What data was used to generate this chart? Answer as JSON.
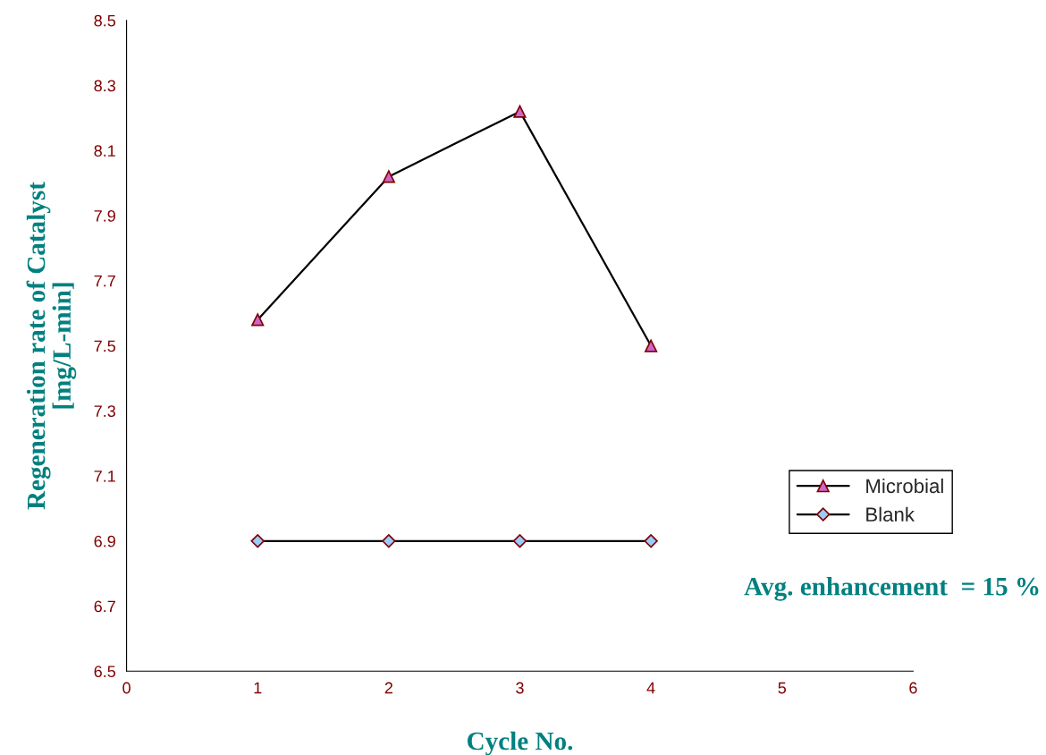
{
  "chart_data": {
    "type": "line",
    "xlabel": "Cycle No.",
    "ylabel": "Regeneration rate of Catalyst\n[mg/L-min]",
    "x": [
      1,
      2,
      3,
      4
    ],
    "series": [
      {
        "name": "Microbial",
        "color": "#000000",
        "marker": "triangle",
        "values": [
          7.58,
          8.02,
          8.22,
          7.5
        ]
      },
      {
        "name": "Blank",
        "color": "#000000",
        "marker": "diamond",
        "values": [
          6.9,
          6.9,
          6.9,
          6.9
        ]
      }
    ],
    "xlim": [
      0,
      6
    ],
    "xticks": [
      0,
      1,
      2,
      3,
      4,
      5,
      6
    ],
    "ylim": [
      6.5,
      8.5
    ],
    "yticks": [
      6.5,
      6.7,
      6.9,
      7.1,
      7.3,
      7.5,
      7.7,
      7.9,
      8.1,
      8.3,
      8.5
    ],
    "grid": false,
    "legend": "right",
    "line_style": "solid",
    "annotations": [
      "Avg. enhancement  = 15 %"
    ]
  }
}
